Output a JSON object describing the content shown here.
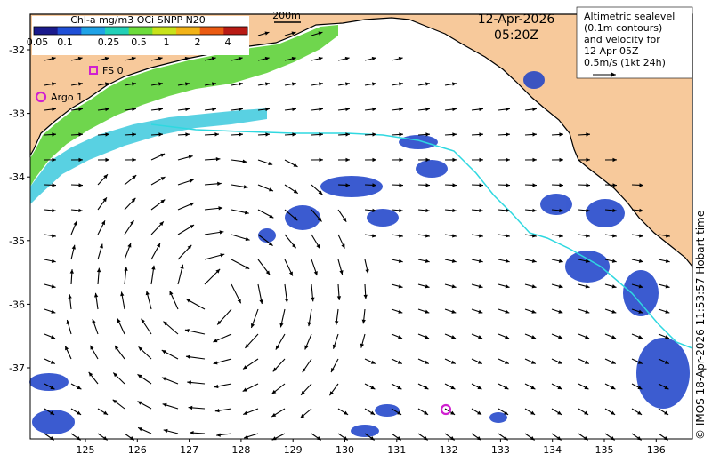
{
  "colorbar": {
    "title": "Chl-a mg/m3 OCi SNPP N20",
    "ticks": [
      "0.05",
      "0.1",
      "0.25",
      "0.5",
      "1",
      "2",
      "4"
    ],
    "colors": [
      "#1a1a8c",
      "#1f4fd6",
      "#1fa2e6",
      "#22d0b8",
      "#6ddc3c",
      "#c8e21a",
      "#f2b318",
      "#ea5a12",
      "#b81a14"
    ]
  },
  "scale_bar": {
    "label": "200m"
  },
  "timestamp": {
    "date": "12-Apr-2026",
    "time": "05:20Z"
  },
  "legend_box": {
    "lines": [
      "Altimetric sealevel",
      "(0.1m contours)",
      "and velocity for",
      "12 Apr 05Z",
      "0.5m/s (1kt 24h)"
    ]
  },
  "markers": [
    {
      "label": "FS 0",
      "shape": "square",
      "color": "#d020d0"
    },
    {
      "label": "Argo 1",
      "shape": "circle",
      "color": "#d020d0"
    },
    {
      "label": "",
      "shape": "circle",
      "color": "#d020d0"
    }
  ],
  "axes": {
    "x_ticks": [
      "125",
      "126",
      "127",
      "128",
      "129",
      "130",
      "131",
      "132",
      "133",
      "134",
      "135",
      "136"
    ],
    "y_ticks": [
      "-32",
      "-33",
      "-34",
      "-35",
      "-36",
      "-37"
    ]
  },
  "credit": "© IMOS 18-Apr-2026 11:53:57 Hobart time",
  "colors": {
    "land": "#f7c99b",
    "contour": "#2fd8e0",
    "ocean": "#ffffff"
  }
}
